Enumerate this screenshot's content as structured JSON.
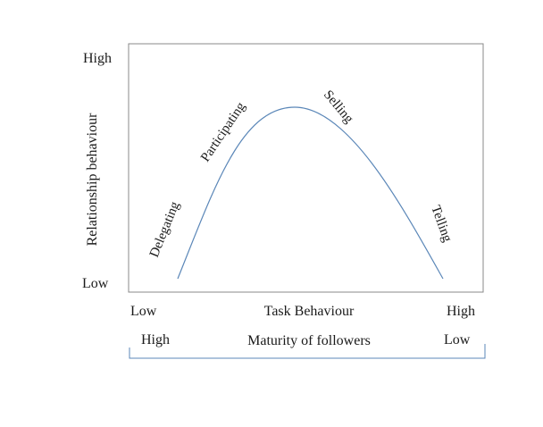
{
  "y_axis": {
    "title": "Relationship behaviour",
    "high": "High",
    "low": "Low"
  },
  "x_axis": {
    "title": "Task Behaviour",
    "low": "Low",
    "high": "High"
  },
  "maturity": {
    "title": "Maturity of followers",
    "left": "High",
    "right": "Low"
  },
  "stages": [
    "Delegating",
    "Participating",
    "Selling",
    "Telling"
  ],
  "colors": {
    "curve": "#5b87b8",
    "bracket": "#5b87b8",
    "frame": "#888888"
  }
}
